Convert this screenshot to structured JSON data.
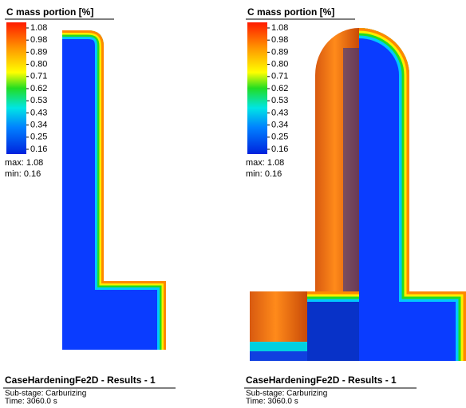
{
  "panels": [
    {
      "legend": {
        "title": "C mass portion [%]",
        "ticks": [
          "1.08",
          "0.98",
          "0.89",
          "0.80",
          "0.71",
          "0.62",
          "0.53",
          "0.43",
          "0.34",
          "0.25",
          "0.16"
        ],
        "max": "max: 1.08",
        "min": "min:  0.16"
      },
      "footer": {
        "title": "CaseHardeningFe2D - Results - 1",
        "substage": "Sub-stage: Carburizing",
        "time": "Time: 3060.0 s"
      }
    },
    {
      "legend": {
        "title": "C mass portion [%]",
        "ticks": [
          "1.08",
          "0.98",
          "0.89",
          "0.80",
          "0.71",
          "0.62",
          "0.53",
          "0.43",
          "0.34",
          "0.25",
          "0.16"
        ],
        "max": "max: 1.08",
        "min": "min:  0.16"
      },
      "footer": {
        "title": "CaseHardeningFe2D - Results - 1",
        "substage": "Sub-stage: Carburizing",
        "time": "Time: 3060.0 s"
      }
    }
  ]
}
